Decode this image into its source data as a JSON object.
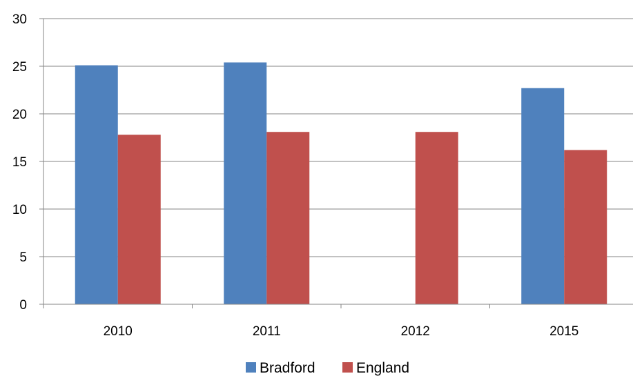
{
  "chart_data": {
    "type": "bar",
    "categories": [
      "2010",
      "2011",
      "2012",
      "2015"
    ],
    "series": [
      {
        "name": "Bradford",
        "color": "#4F81BD",
        "values": [
          25.1,
          25.4,
          null,
          22.7
        ]
      },
      {
        "name": "England",
        "color": "#C0504D",
        "values": [
          17.8,
          18.1,
          18.1,
          16.2
        ]
      }
    ],
    "ylim": [
      0,
      30
    ],
    "yticks": [
      0,
      5,
      10,
      15,
      20,
      25,
      30
    ],
    "title": "",
    "xlabel": "",
    "ylabel": "",
    "grid": true,
    "legend_position": "bottom"
  }
}
